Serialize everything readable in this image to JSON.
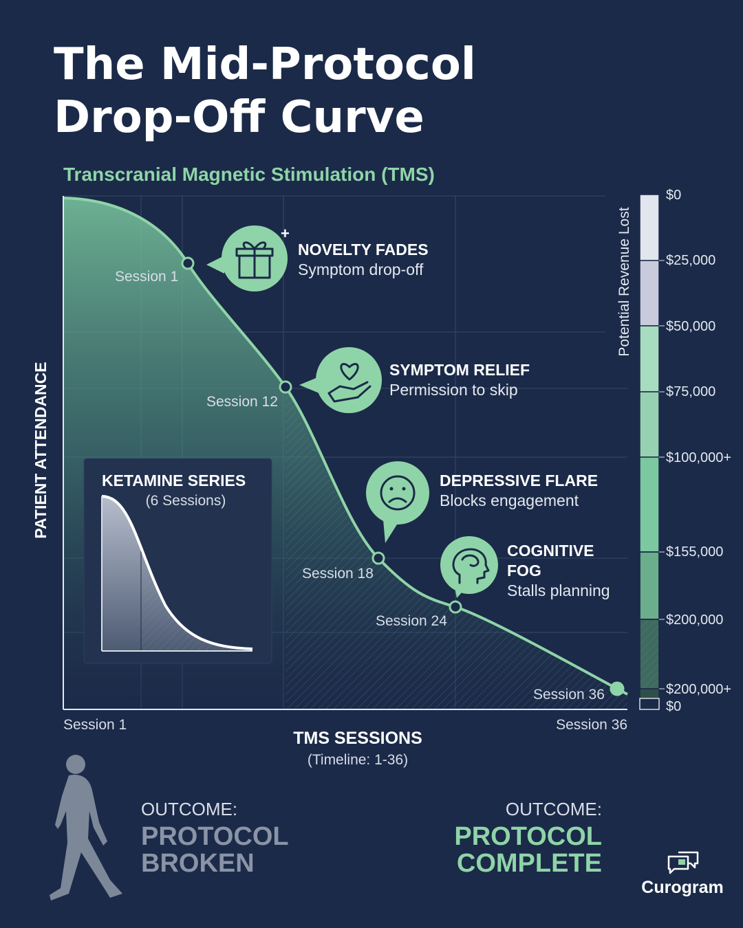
{
  "header": {
    "title_lines": [
      "The Mid-Protocol",
      "Drop-Off Curve"
    ],
    "subtitle": "Transcranial Magnetic Stimulation (TMS)"
  },
  "chart": {
    "y_axis_label": "PATIENT ATTENDANCE",
    "x_axis_title": "TMS SESSIONS",
    "x_axis_subtitle": "(Timeline: 1-36)",
    "x_start_label": "Session 1",
    "x_end_label": "Session 36",
    "session_points": [
      "Session 1",
      "Session 12",
      "Session 18",
      "Session 24",
      "Session 36"
    ],
    "callouts": [
      {
        "heading": "NOVELTY FADES",
        "text": "Symptom drop-off"
      },
      {
        "heading": "SYMPTOM RELIEF",
        "text": "Permission to skip"
      },
      {
        "heading": "DEPRESSIVE FLARE",
        "text": "Blocks engagement"
      },
      {
        "heading_lines": [
          "COGNITIVE",
          "FOG"
        ],
        "text": "Stalls planning"
      }
    ],
    "inset": {
      "title": "KETAMINE SERIES",
      "subtitle": "(6 Sessions)"
    }
  },
  "revenue_scale": {
    "title": "Potential Revenue Lost",
    "labels": [
      "$0",
      "$25,000",
      "$50,000",
      "$75,000",
      "$100,000+",
      "$155,000",
      "$200,000",
      "$200,000+",
      "$0"
    ]
  },
  "outcomes": [
    {
      "label": "OUTCOME:",
      "lines": [
        "PROTOCOL",
        "BROKEN"
      ]
    },
    {
      "label": "OUTCOME:",
      "lines": [
        "PROTOCOL",
        "COMPLETE"
      ]
    }
  ],
  "brand": "Curogram"
}
